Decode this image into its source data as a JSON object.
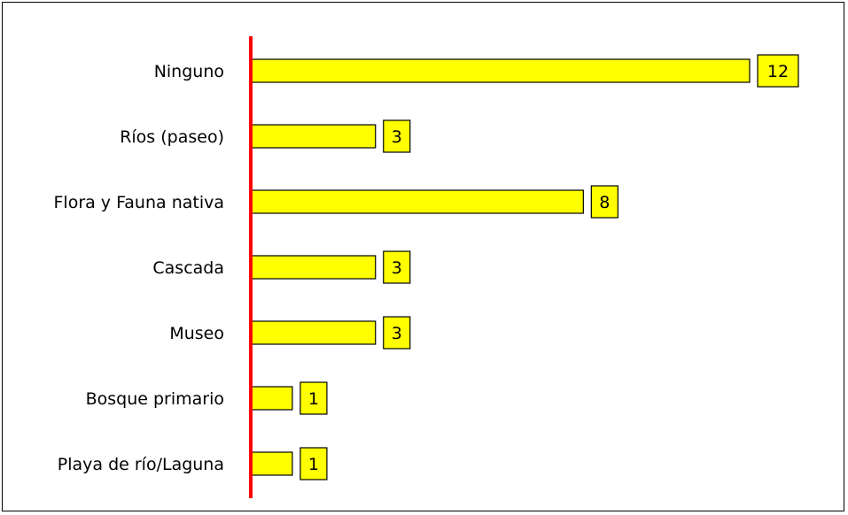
{
  "chart_data": {
    "type": "bar",
    "orientation": "horizontal",
    "categories": [
      "Ninguno",
      "Ríos (paseo)",
      "Flora y Fauna nativa",
      "Cascada",
      "Museo",
      "Bosque primario",
      "Playa de río/Laguna"
    ],
    "values": [
      12,
      3,
      8,
      3,
      3,
      1,
      1
    ],
    "data_labels": [
      "12",
      "3",
      "8",
      "3",
      "3",
      "1",
      "1"
    ],
    "xlim": [
      0,
      12
    ],
    "grid": false,
    "legend": "none",
    "colors": {
      "bar_fill": "#ffff00",
      "bar_stroke": "#000000",
      "axis_line": "#ff0000",
      "label_box_fill": "#ffff00",
      "label_box_stroke": "#000000"
    }
  }
}
